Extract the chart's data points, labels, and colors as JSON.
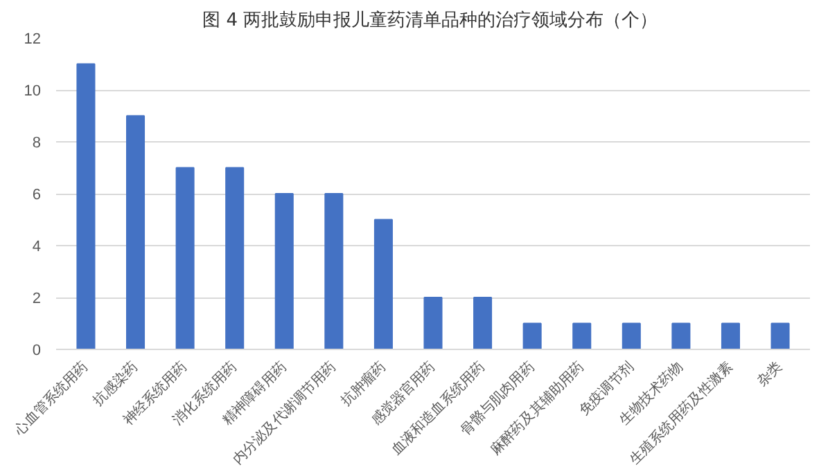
{
  "chart_data": {
    "type": "bar",
    "title": "图 4  两批鼓励申报儿童药清单品种的治疗领域分布（个）",
    "categories": [
      "心血管系统用药",
      "抗感染药",
      "神经系统用药",
      "消化系统用药",
      "精神障碍用药",
      "内分泌及代谢调节用药",
      "抗肿瘤药",
      "感觉器官用药",
      "血液和造血系统用药",
      "骨骼与肌肉用药",
      "麻醉药及其辅助用药",
      "免疫调节剂",
      "生物技术药物",
      "生殖系统用药及性激素",
      "杂类"
    ],
    "values": [
      11,
      9,
      7,
      7,
      6,
      6,
      5,
      2,
      2,
      1,
      1,
      1,
      1,
      1,
      1
    ],
    "color": "#4472c4",
    "ylim": [
      0,
      12
    ],
    "yticks": [
      0,
      2,
      4,
      6,
      8,
      10,
      12
    ],
    "grid": "y"
  }
}
